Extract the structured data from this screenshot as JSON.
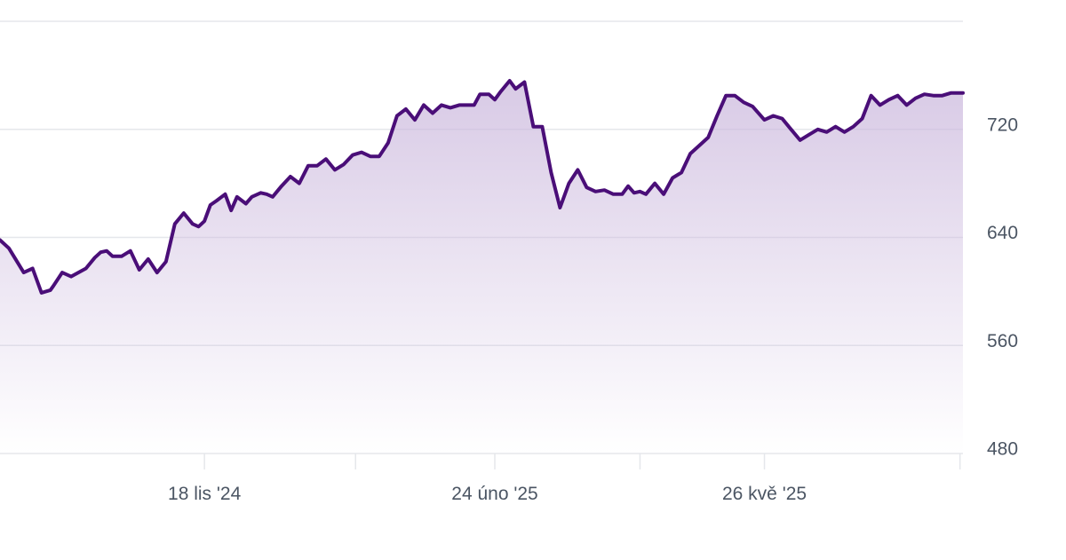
{
  "chart_data": {
    "type": "area",
    "title": "",
    "xlabel": "",
    "ylabel": "",
    "ylim": [
      480,
      800
    ],
    "grid": true,
    "legend": "none",
    "yticks": [
      {
        "value": 720,
        "label": "720"
      },
      {
        "value": 640,
        "label": "640"
      },
      {
        "value": 560,
        "label": "560"
      },
      {
        "value": 480,
        "label": "480"
      }
    ],
    "xticks": [
      {
        "date": "2024-11-18",
        "label": "18 lis '24"
      },
      {
        "date": "2025-02-24",
        "label": "24 úno '25"
      },
      {
        "date": "2025-05-26",
        "label": "26 kvě '25"
      }
    ],
    "minor_xticks": [
      "2025-01-08",
      "2025-04-14",
      "2025-07-31"
    ],
    "xrange": [
      "2024-09-10",
      "2025-08-01"
    ],
    "colors": {
      "line": "#4a0e78",
      "fill": "#cbb8dd"
    },
    "series": [
      {
        "x": [
          "2024-09-10",
          "2024-09-13",
          "2024-09-18",
          "2024-09-21",
          "2024-09-24",
          "2024-09-27",
          "2024-09-28",
          "2024-10-01",
          "2024-10-04",
          "2024-10-09",
          "2024-10-12",
          "2024-10-14",
          "2024-10-16",
          "2024-10-18",
          "2024-10-21",
          "2024-10-24",
          "2024-10-27",
          "2024-10-30",
          "2024-11-02",
          "2024-11-05",
          "2024-11-08",
          "2024-11-11",
          "2024-11-14",
          "2024-11-16",
          "2024-11-18",
          "2024-11-20",
          "2024-11-22",
          "2024-11-25",
          "2024-11-27",
          "2024-11-29",
          "2024-12-02",
          "2024-12-04",
          "2024-12-07",
          "2024-12-09",
          "2024-12-11",
          "2024-12-14",
          "2024-12-17",
          "2024-12-20",
          "2024-12-23",
          "2024-12-26",
          "2024-12-29",
          "2025-01-01",
          "2025-01-04",
          "2025-01-07",
          "2025-01-10",
          "2025-01-13",
          "2025-01-16",
          "2025-01-19",
          "2025-01-22",
          "2025-01-25",
          "2025-01-28",
          "2025-01-31",
          "2025-02-03",
          "2025-02-06",
          "2025-02-09",
          "2025-02-12",
          "2025-02-14",
          "2025-02-17",
          "2025-02-19",
          "2025-02-22",
          "2025-02-24",
          "2025-02-26",
          "2025-03-01",
          "2025-03-03",
          "2025-03-06",
          "2025-03-09",
          "2025-03-12",
          "2025-03-15",
          "2025-03-18",
          "2025-03-21",
          "2025-03-24",
          "2025-03-27",
          "2025-03-30",
          "2025-04-02",
          "2025-04-05",
          "2025-04-08",
          "2025-04-10",
          "2025-04-12",
          "2025-04-14",
          "2025-04-16",
          "2025-04-19",
          "2025-04-22",
          "2025-04-25",
          "2025-04-28",
          "2025-05-01",
          "2025-05-04",
          "2025-05-07",
          "2025-05-10",
          "2025-05-13",
          "2025-05-16",
          "2025-05-19",
          "2025-05-22",
          "2025-05-26",
          "2025-05-29",
          "2025-06-01",
          "2025-06-04",
          "2025-06-07",
          "2025-06-10",
          "2025-06-13",
          "2025-06-16",
          "2025-06-19",
          "2025-06-22",
          "2025-06-25",
          "2025-06-28",
          "2025-07-01",
          "2025-07-04",
          "2025-07-07",
          "2025-07-10",
          "2025-07-13",
          "2025-07-16",
          "2025-07-19",
          "2025-07-22",
          "2025-07-25",
          "2025-07-28",
          "2025-08-01"
        ],
        "y": [
          638,
          632,
          614,
          617,
          599,
          601,
          604,
          614,
          611,
          617,
          625,
          629,
          630,
          626,
          626,
          630,
          616,
          624,
          614,
          622,
          650,
          658,
          650,
          648,
          652,
          664,
          667,
          672,
          660,
          670,
          665,
          670,
          673,
          672,
          670,
          678,
          685,
          680,
          693,
          693,
          698,
          690,
          694,
          701,
          703,
          700,
          700,
          710,
          730,
          735,
          727,
          738,
          732,
          738,
          736,
          738,
          738,
          738,
          746,
          746,
          742,
          748,
          756,
          750,
          755,
          722,
          722,
          688,
          662,
          680,
          690,
          677,
          674,
          675,
          672,
          672,
          678,
          673,
          674,
          672,
          680,
          672,
          684,
          688,
          702,
          708,
          714,
          730,
          745,
          745,
          740,
          737,
          727,
          730,
          728,
          720,
          712,
          716,
          720,
          718,
          722,
          718,
          722,
          728,
          745,
          738,
          742,
          745,
          738,
          743,
          746,
          745,
          745,
          747,
          747
        ]
      }
    ]
  }
}
